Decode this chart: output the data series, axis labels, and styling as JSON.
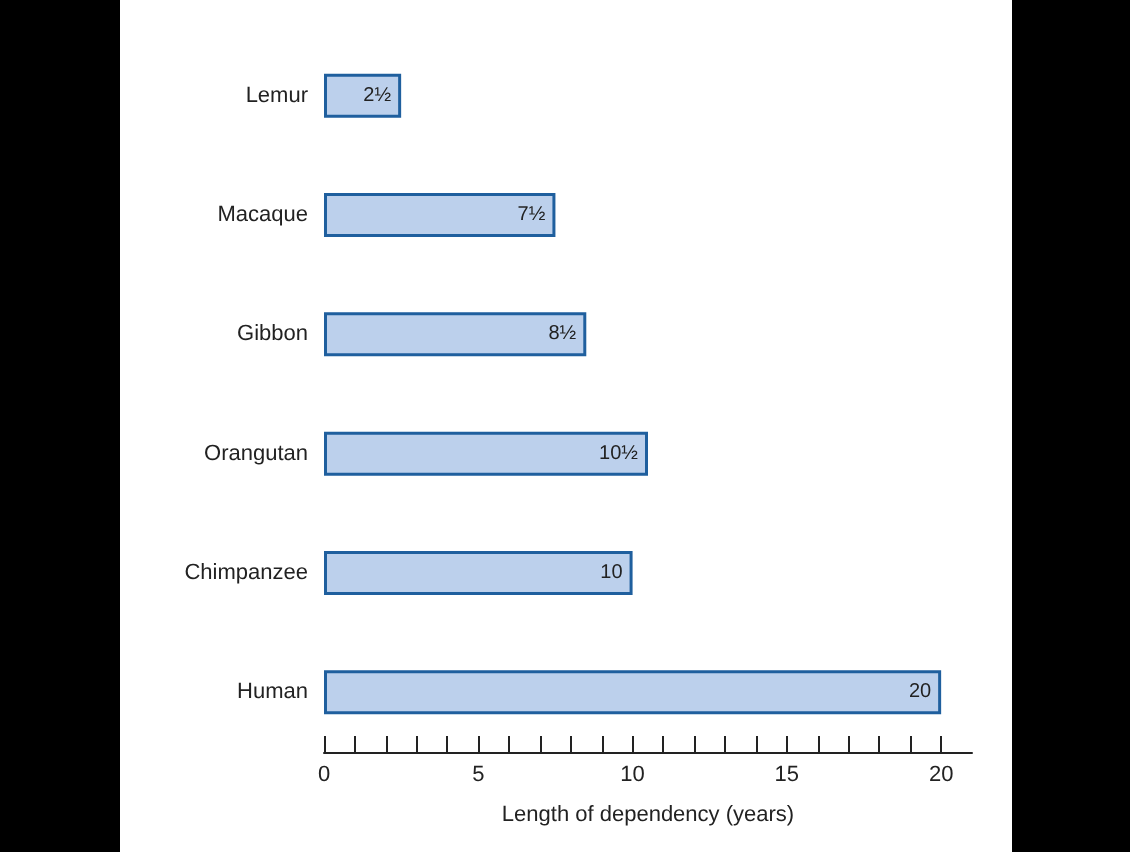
{
  "chart_data": {
    "type": "bar",
    "orientation": "horizontal",
    "xlabel": "Length of dependency (years)",
    "categories": [
      "Lemur",
      "Macaque",
      "Gibbon",
      "Orangutan",
      "Chimpanzee",
      "Human"
    ],
    "values": [
      2.5,
      7.5,
      8.5,
      10.5,
      10,
      20
    ],
    "value_labels": [
      "2½",
      "7½",
      "8½",
      "10½",
      "10",
      "20"
    ],
    "color": "#bcd0ec",
    "xlim": [
      0,
      21
    ],
    "xticks": [
      0,
      {
        "value": 1,
        "label": null
      },
      {
        "value": 2,
        "label": null
      },
      {
        "value": 3,
        "label": null
      },
      {
        "value": 4,
        "label": null
      },
      5,
      {
        "value": 6,
        "label": null
      },
      {
        "value": 7,
        "label": null
      },
      {
        "value": 8,
        "label": null
      },
      {
        "value": 9,
        "label": null
      },
      10,
      {
        "value": 11,
        "label": null
      },
      {
        "value": 12,
        "label": null
      },
      {
        "value": 13,
        "label": null
      },
      {
        "value": 14,
        "label": null
      },
      15,
      {
        "value": 16,
        "label": null
      },
      {
        "value": 17,
        "label": null
      },
      {
        "value": 18,
        "label": null
      },
      {
        "value": 19,
        "label": null
      },
      20
    ],
    "grid": false
  }
}
